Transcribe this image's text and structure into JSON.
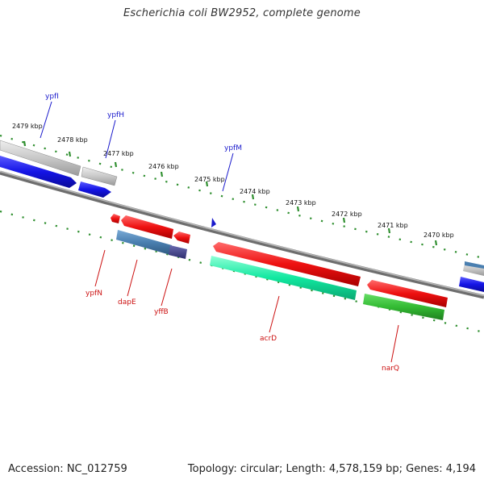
{
  "title": "Escherichia coli BW2952, complete genome",
  "footer": {
    "accession": "Accession: NC_012759",
    "summary": "Topology: circular; Length: 4,578,159 bp; Genes: 4,194"
  },
  "ticks": [
    "2479 kbp",
    "2478 kbp",
    "2477 kbp",
    "2476 kbp",
    "2475 kbp",
    "2474 kbp",
    "2473 kbp",
    "2472 kbp",
    "2471 kbp",
    "2470 kbp"
  ],
  "genes_top": [
    "ypfI",
    "ypfH",
    "ypfM"
  ],
  "genes_bottom": [
    "ypfN",
    "dapE",
    "yffB",
    "acrD",
    "narQ"
  ],
  "colors": {
    "backbone": "#8a8a8a",
    "tick_dots": "#2f8f2f",
    "top_label": "#1a1acc",
    "bottom_label": "#cc1111",
    "gray_feature": "#c8c8c8",
    "blue_feature": "#1414e6",
    "red_feature": "#ee1111",
    "steelblue_feature": "#4a7fb0",
    "navy_feature": "#44448a",
    "teal_feature": "#11e8a0",
    "green_feature": "#33bb33"
  }
}
